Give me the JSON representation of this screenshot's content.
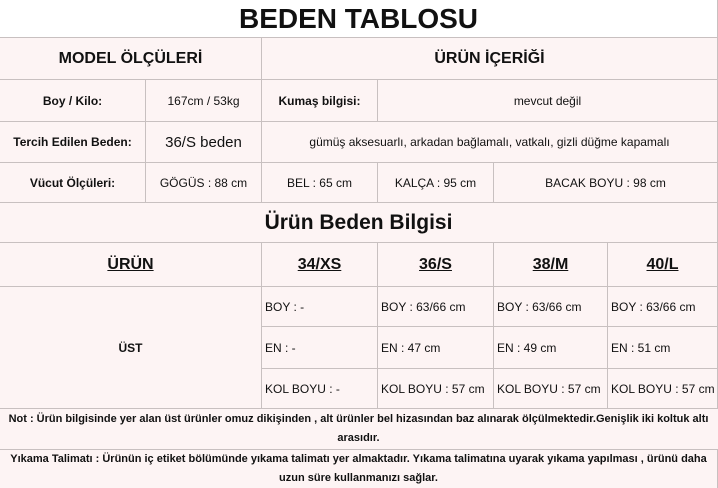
{
  "title": "BEDEN TABLOSU",
  "info": {
    "model_title": "MODEL ÖLÇÜLERİ",
    "content_title": "ÜRÜN İÇERİĞİ",
    "height_weight_label": "Boy / Kilo:",
    "height_weight": "167cm / 53kg",
    "fabric_label": "Kumaş bilgisi:",
    "fabric": "mevcut değil",
    "size_label": "Tercih Edilen Beden:",
    "size": "36/S beden",
    "details": "gümüş aksesuarlı, arkadan bağlamalı, vatkalı, gizli düğme kapamalı",
    "body_label": "Vücut Ölçüleri:",
    "body": [
      "GÖGÜS : 88 cm",
      "BEL : 65 cm",
      "KALÇA : 95 cm",
      "BACAK BOYU : 98 cm"
    ]
  },
  "size_table": {
    "title": "Ürün Beden Bilgisi",
    "header": [
      "ÜRÜN",
      "34/XS",
      "36/S",
      "38/M",
      "40/L"
    ],
    "product": "ÜST",
    "rows": [
      [
        "BOY : -",
        "BOY : 63/66 cm",
        "BOY : 63/66 cm",
        "BOY : 63/66 cm"
      ],
      [
        "EN : -",
        "EN : 47 cm",
        "EN : 49 cm",
        "EN : 51 cm"
      ],
      [
        "KOL BOYU : -",
        "KOL BOYU : 57 cm",
        "KOL BOYU : 57 cm",
        "KOL BOYU : 57 cm"
      ]
    ]
  },
  "notes": {
    "measure": "Not : Ürün bilgisinde yer alan üst ürünler omuz dikişinden , alt ürünler bel hizasından baz alınarak ölçülmektedir.Genişlik iki koltuk altı arasıdır.",
    "washing": "Yıkama Talimatı : Ürünün iç etiket bölümünde yıkama talimatı yer almaktadır. Yıkama talimatına uyarak yıkama yapılması , ürünü daha uzun süre kullanmanızı sağlar."
  }
}
